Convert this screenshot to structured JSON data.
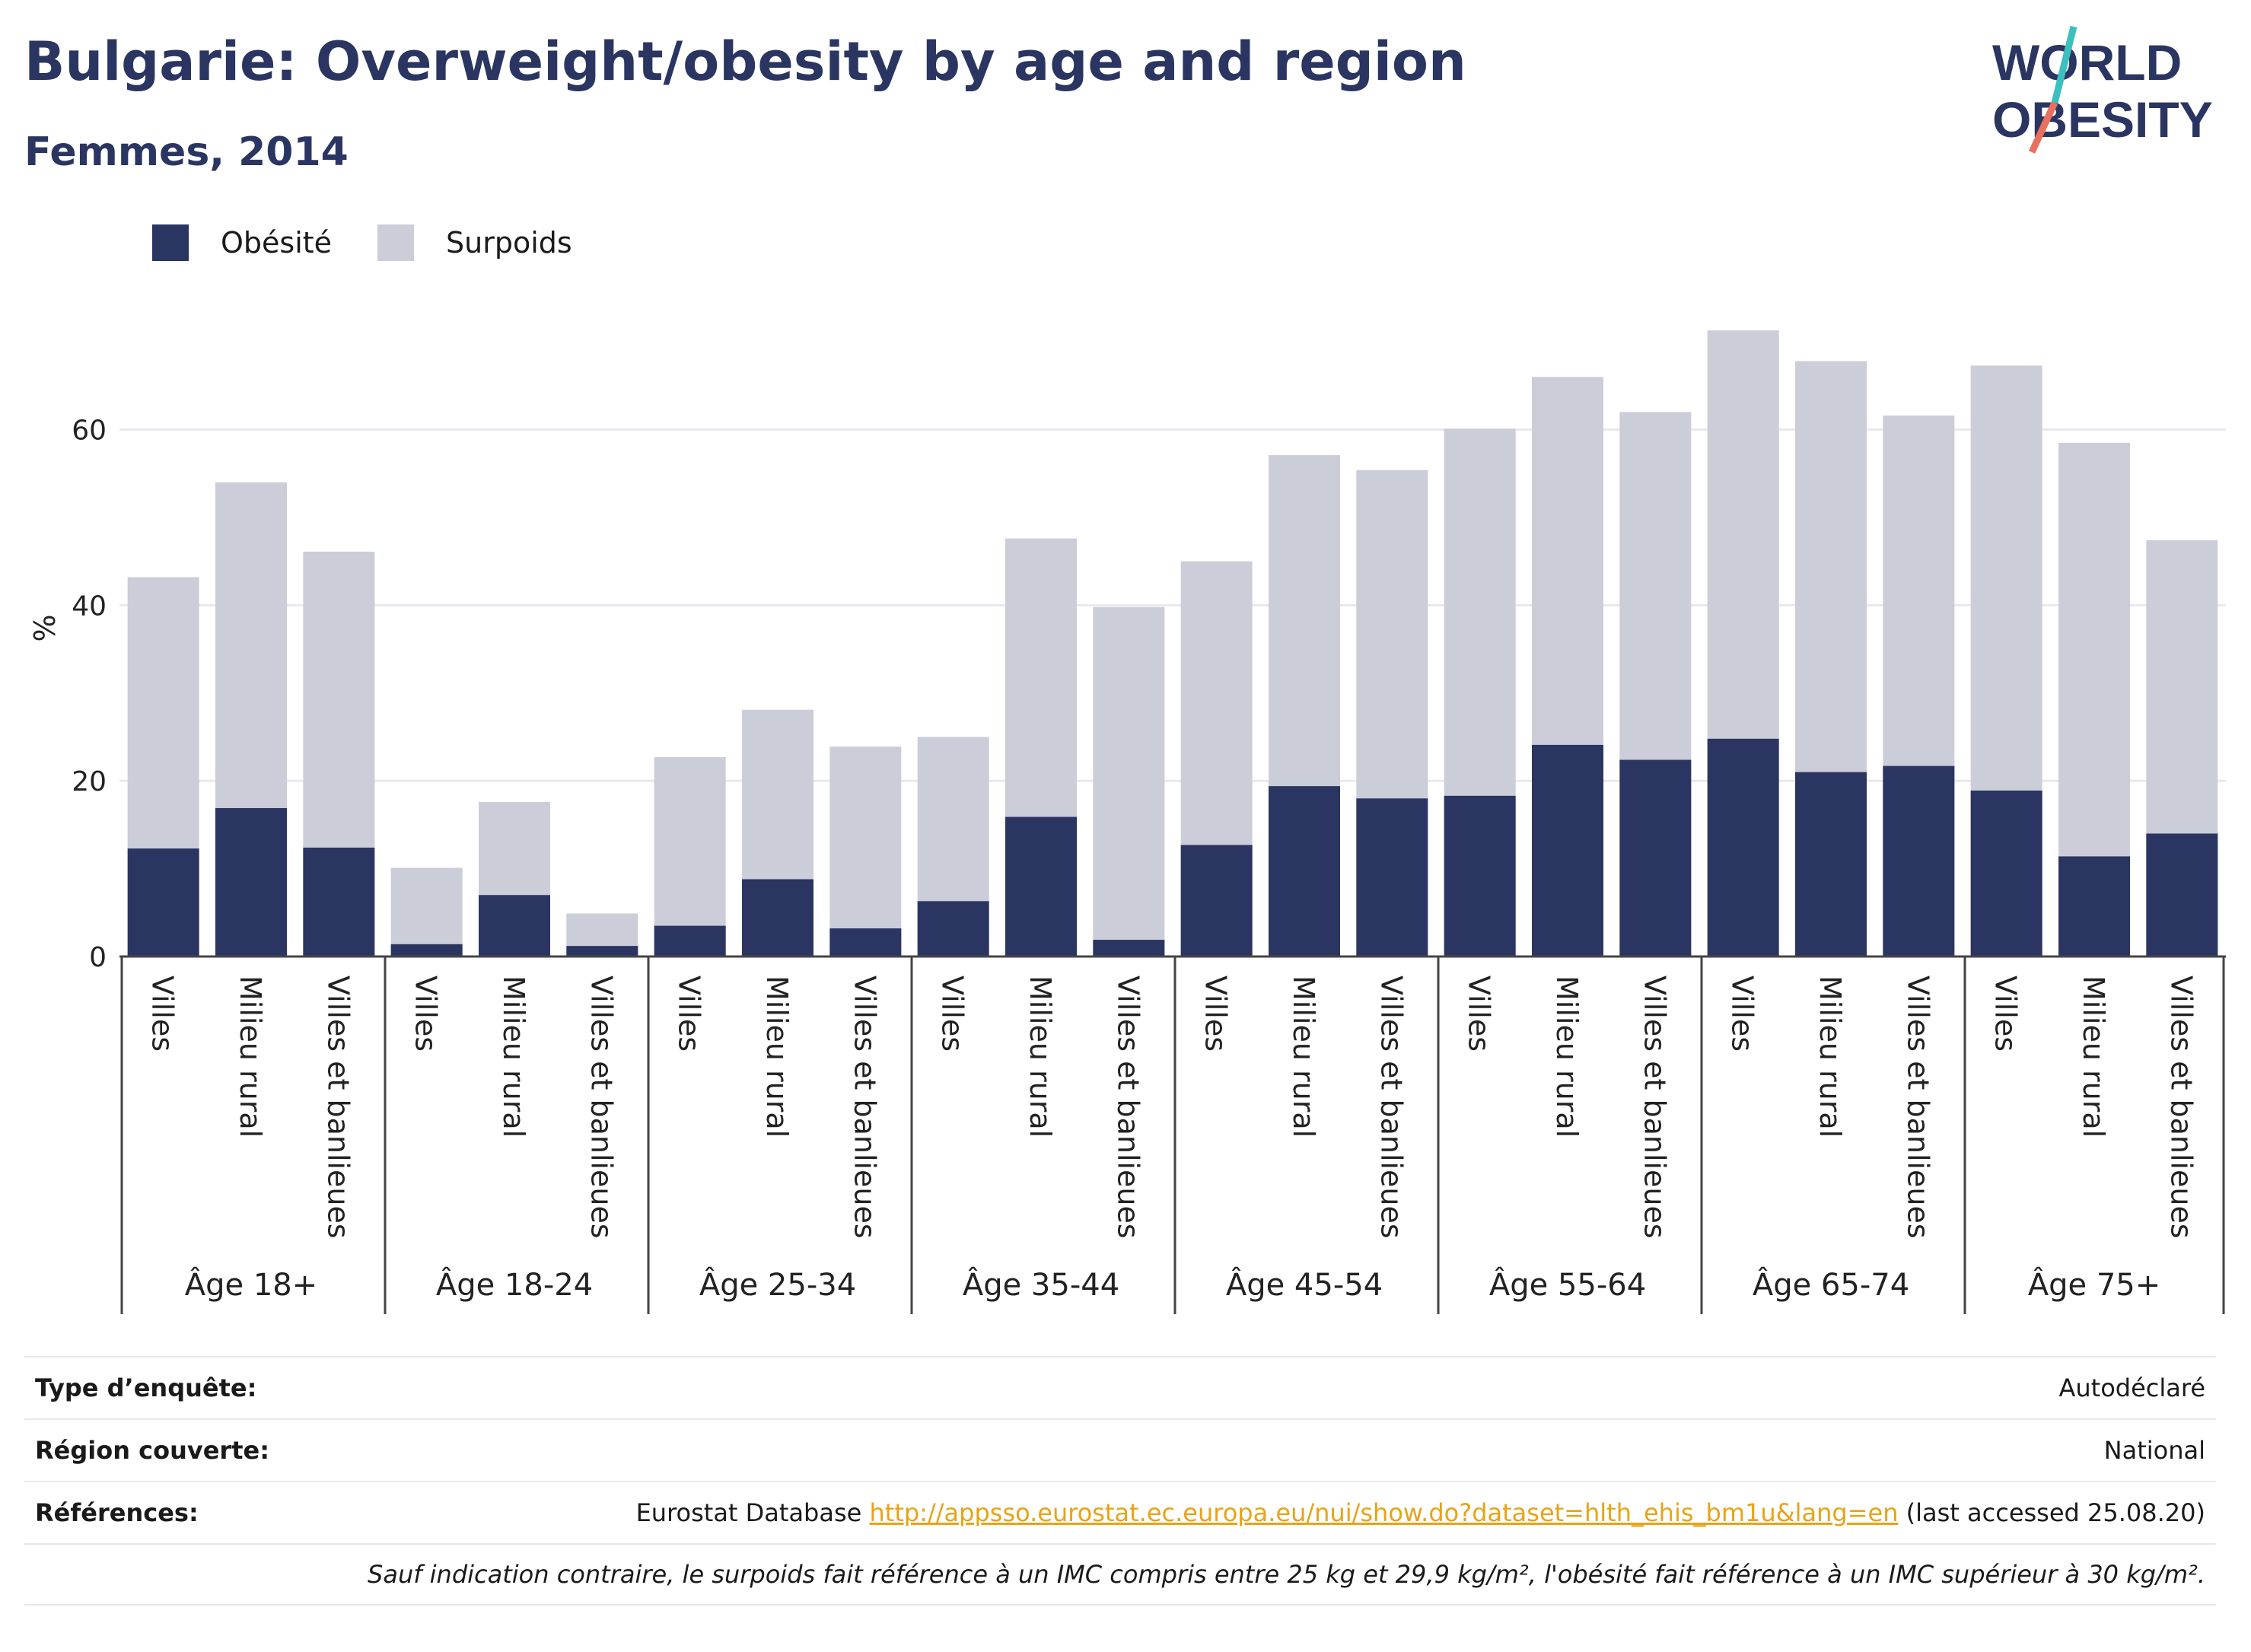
{
  "header": {
    "title": "Bulgarie: Overweight/obesity by age and region",
    "subtitle": "Femmes, 2014"
  },
  "logo": {
    "line1": "WORLD",
    "line2": "OBESITY"
  },
  "colors": {
    "obesity": "#2b3561",
    "overweight": "#cbcdd8",
    "title": "#2b3561",
    "link": "#e8a317",
    "grid": "#e8e8ee"
  },
  "chart_data": {
    "type": "bar",
    "stacked": true,
    "ylabel": "%",
    "ylim": [
      0,
      76
    ],
    "yticks": [
      0,
      20,
      40,
      60
    ],
    "legend": [
      "Obésité",
      "Surpoids"
    ],
    "legend_position": "top-left",
    "grid": true,
    "groups": [
      {
        "label": "Âge 18+",
        "regions": [
          "Villes",
          "Milieu rural",
          "Villes et banlieues"
        ],
        "obesity": [
          12.3,
          16.9,
          12.4
        ],
        "total": [
          43.2,
          54.0,
          46.1
        ]
      },
      {
        "label": "Âge 18-24",
        "regions": [
          "Villes",
          "Milieu rural",
          "Villes et banlieues"
        ],
        "obesity": [
          1.4,
          7.0,
          1.2
        ],
        "total": [
          10.1,
          17.6,
          4.9
        ]
      },
      {
        "label": "Âge 25-34",
        "regions": [
          "Villes",
          "Milieu rural",
          "Villes et banlieues"
        ],
        "obesity": [
          3.5,
          8.8,
          3.2
        ],
        "total": [
          22.7,
          28.1,
          23.9
        ]
      },
      {
        "label": "Âge 35-44",
        "regions": [
          "Villes",
          "Milieu rural",
          "Villes et banlieues"
        ],
        "obesity": [
          6.3,
          15.9,
          1.9
        ],
        "total": [
          25.0,
          47.6,
          39.8
        ]
      },
      {
        "label": "Âge 45-54",
        "regions": [
          "Villes",
          "Milieu rural",
          "Villes et banlieues"
        ],
        "obesity": [
          12.7,
          19.4,
          18.0
        ],
        "total": [
          45.0,
          57.1,
          55.4
        ]
      },
      {
        "label": "Âge 55-64",
        "regions": [
          "Villes",
          "Milieu rural",
          "Villes et banlieues"
        ],
        "obesity": [
          18.3,
          24.1,
          22.4
        ],
        "total": [
          60.1,
          66.0,
          62.0
        ]
      },
      {
        "label": "Âge 65-74",
        "regions": [
          "Villes",
          "Milieu rural",
          "Villes et banlieues"
        ],
        "obesity": [
          24.8,
          21.0,
          21.7
        ],
        "total": [
          71.3,
          67.8,
          61.6
        ]
      },
      {
        "label": "Âge 75+",
        "regions": [
          "Villes",
          "Milieu rural",
          "Villes et banlieues"
        ],
        "obesity": [
          18.9,
          11.4,
          14.0
        ],
        "total": [
          67.3,
          58.5,
          47.4
        ]
      }
    ]
  },
  "info": {
    "survey_label": "Type d’enquête:",
    "survey_value": "Autodéclaré",
    "region_label": "Région couverte:",
    "region_value": "National",
    "refs_label": "Références:",
    "refs_prefix": "Eurostat Database",
    "refs_link": "http://appsso.eurostat.ec.europa.eu/nui/show.do?dataset=hlth_ehis_bm1u&lang=en",
    "refs_suffix": "(last accessed 25.08.20)",
    "note": "Sauf indication contraire, le surpoids fait référence à un IMC compris entre 25 kg et 29,9 kg/m², l'obésité fait référence à un IMC supérieur à 30 kg/m²."
  }
}
